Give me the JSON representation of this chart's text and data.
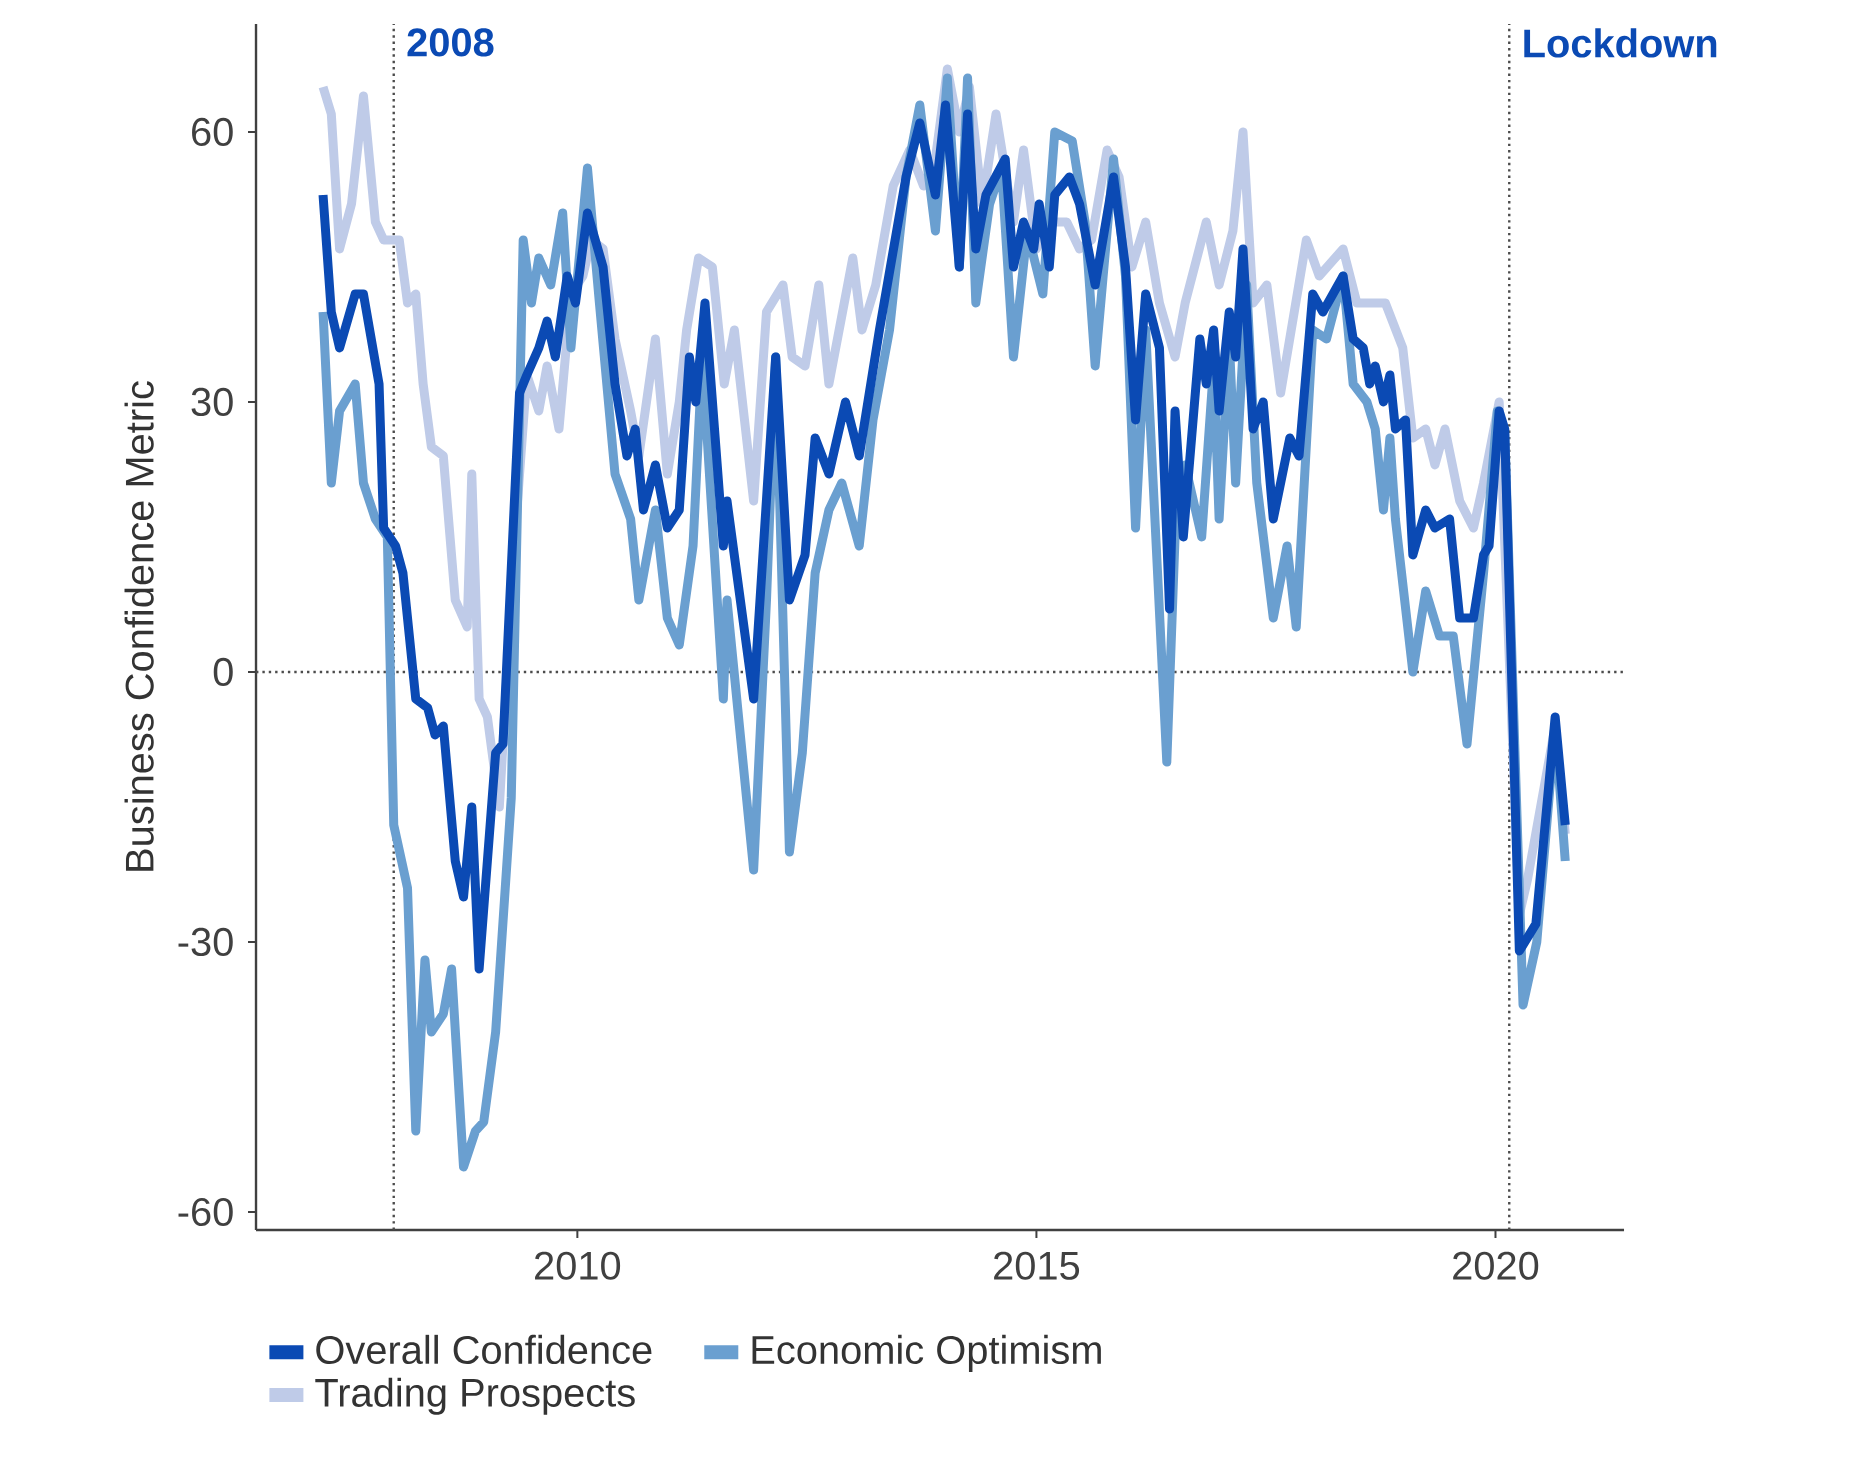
{
  "chart_data": {
    "type": "line",
    "ylabel": "Business Confidence Metric",
    "xlim": [
      2006.5,
      2021.4
    ],
    "ylim": [
      -62,
      72
    ],
    "xticks": [
      2010,
      2015,
      2020
    ],
    "yticks": [
      -60,
      -30,
      0,
      30,
      60
    ],
    "grid": false,
    "legend": "bottom",
    "line_style": "solid",
    "marker": "none",
    "ref_lines": [
      {
        "axis": "x",
        "value": 2008,
        "label": "2008",
        "line_style": "dotted"
      },
      {
        "axis": "x",
        "value": 2020.15,
        "label": "Lockdown",
        "line_style": "dotted"
      },
      {
        "axis": "y",
        "value": 0,
        "line_style": "dotted"
      }
    ],
    "series": [
      {
        "name": "Overall Confidence",
        "color": "#0b4ab4",
        "x": [
          2007.23,
          2007.32,
          2007.41,
          2007.58,
          2007.67,
          2007.84,
          2007.89,
          2008.02,
          2008.1,
          2008.24,
          2008.37,
          2008.45,
          2008.54,
          2008.67,
          2008.76,
          2008.85,
          2008.93,
          2009.11,
          2009.19,
          2009.37,
          2009.45,
          2009.58,
          2009.67,
          2009.76,
          2009.89,
          2009.98,
          2010.11,
          2010.28,
          2010.41,
          2010.54,
          2010.63,
          2010.72,
          2010.85,
          2010.98,
          2011.11,
          2011.22,
          2011.29,
          2011.39,
          2011.59,
          2011.63,
          2011.92,
          2012.16,
          2012.31,
          2012.48,
          2012.59,
          2012.74,
          2012.92,
          2013.07,
          2013.29,
          2013.58,
          2013.73,
          2013.9,
          2014.01,
          2014.16,
          2014.25,
          2014.34,
          2014.45,
          2014.66,
          2014.75,
          2014.86,
          2014.97,
          2015.03,
          2015.14,
          2015.2,
          2015.36,
          2015.47,
          2015.64,
          2015.84,
          2015.97,
          2016.08,
          2016.19,
          2016.34,
          2016.45,
          2016.51,
          2016.6,
          2016.78,
          2016.85,
          2016.93,
          2016.99,
          2017.1,
          2017.17,
          2017.25,
          2017.36,
          2017.47,
          2017.58,
          2017.76,
          2017.86,
          2018.01,
          2018.12,
          2018.34,
          2018.45,
          2018.56,
          2018.63,
          2018.69,
          2018.78,
          2018.85,
          2018.91,
          2019.02,
          2019.1,
          2019.24,
          2019.34,
          2019.5,
          2019.61,
          2019.76,
          2019.87,
          2019.93,
          2020.04,
          2020.1,
          2020.26,
          2020.44,
          2020.65,
          2020.76
        ],
        "values": [
          53,
          40,
          36,
          42,
          42,
          32,
          16,
          14,
          11,
          -3,
          -4,
          -7,
          -6,
          -21,
          -25,
          -15,
          -33,
          -9,
          -8,
          31,
          33,
          36,
          39,
          35,
          44,
          41,
          51,
          45,
          32,
          24,
          27,
          18,
          23,
          16,
          18,
          35,
          30,
          41,
          14,
          19,
          -3,
          35,
          8,
          13,
          26,
          22,
          30,
          24,
          38,
          55,
          61,
          53,
          63,
          45,
          62,
          47,
          53,
          57,
          45,
          50,
          47,
          52,
          45,
          53,
          55,
          52,
          43,
          55,
          45,
          28,
          42,
          36,
          7,
          29,
          15,
          37,
          32,
          38,
          29,
          40,
          35,
          47,
          27,
          30,
          17,
          26,
          24,
          42,
          40,
          44,
          37,
          36,
          32,
          34,
          30,
          33,
          27,
          28,
          13,
          18,
          16,
          17,
          6,
          6,
          13,
          14,
          29,
          27,
          -31,
          -28,
          -5,
          -17
        ]
      },
      {
        "name": "Economic Optimism",
        "color": "#6a9fd0",
        "x": [
          2007.23,
          2007.32,
          2007.41,
          2007.58,
          2007.67,
          2007.8,
          2007.93,
          2008.0,
          2008.15,
          2008.24,
          2008.34,
          2008.41,
          2008.54,
          2008.63,
          2008.76,
          2008.89,
          2008.98,
          2009.11,
          2009.28,
          2009.41,
          2009.5,
          2009.58,
          2009.71,
          2009.84,
          2009.93,
          2010.11,
          2010.24,
          2010.41,
          2010.58,
          2010.67,
          2010.85,
          2010.98,
          2011.11,
          2011.26,
          2011.36,
          2011.59,
          2011.63,
          2011.92,
          2012.06,
          2012.16,
          2012.31,
          2012.45,
          2012.59,
          2012.74,
          2012.88,
          2013.07,
          2013.22,
          2013.4,
          2013.58,
          2013.73,
          2013.9,
          2014.03,
          2014.16,
          2014.25,
          2014.34,
          2014.49,
          2014.62,
          2014.75,
          2014.9,
          2015.07,
          2015.2,
          2015.39,
          2015.53,
          2015.64,
          2015.84,
          2015.97,
          2016.08,
          2016.19,
          2016.42,
          2016.51,
          2016.62,
          2016.8,
          2016.93,
          2016.99,
          2017.1,
          2017.17,
          2017.29,
          2017.4,
          2017.58,
          2017.73,
          2017.83,
          2018.01,
          2018.16,
          2018.34,
          2018.45,
          2018.6,
          2018.69,
          2018.78,
          2018.85,
          2018.91,
          2019.1,
          2019.24,
          2019.39,
          2019.54,
          2019.69,
          2019.87,
          2020.02,
          2020.1,
          2020.3,
          2020.45,
          2020.65,
          2020.76
        ],
        "values": [
          40,
          21,
          29,
          32,
          21,
          17,
          15,
          -17,
          -24,
          -51,
          -32,
          -40,
          -38,
          -33,
          -55,
          -51,
          -50,
          -40,
          -14,
          48,
          41,
          46,
          43,
          51,
          36,
          56,
          41,
          22,
          17,
          8,
          18,
          6,
          3,
          14,
          35,
          -3,
          8,
          -22,
          8,
          35,
          -20,
          -9,
          11,
          18,
          21,
          14,
          28,
          38,
          55,
          63,
          49,
          66,
          45,
          66,
          41,
          52,
          56,
          35,
          49,
          42,
          60,
          59,
          50,
          34,
          57,
          44,
          16,
          38,
          -10,
          15,
          23,
          15,
          34,
          17,
          37,
          21,
          43,
          21,
          6,
          14,
          5,
          38,
          37,
          44,
          32,
          30,
          27,
          18,
          26,
          17,
          0,
          9,
          4,
          4,
          -8,
          11,
          29,
          27,
          -37,
          -30,
          -6,
          -21
        ]
      },
      {
        "name": "Trading Prospects",
        "color": "#bfcbe8",
        "x": [
          2007.23,
          2007.32,
          2007.41,
          2007.54,
          2007.67,
          2007.8,
          2007.89,
          2008.06,
          2008.15,
          2008.24,
          2008.32,
          2008.41,
          2008.54,
          2008.67,
          2008.8,
          2008.85,
          2008.93,
          2009.02,
          2009.15,
          2009.32,
          2009.45,
          2009.58,
          2009.67,
          2009.8,
          2009.93,
          2010.06,
          2010.15,
          2010.28,
          2010.41,
          2010.58,
          2010.67,
          2010.85,
          2010.98,
          2011.11,
          2011.19,
          2011.32,
          2011.47,
          2011.6,
          2011.71,
          2011.92,
          2012.06,
          2012.24,
          2012.34,
          2012.48,
          2012.63,
          2012.74,
          2013.0,
          2013.1,
          2013.25,
          2013.44,
          2013.62,
          2013.77,
          2013.9,
          2014.03,
          2014.16,
          2014.27,
          2014.41,
          2014.56,
          2014.75,
          2014.86,
          2015.0,
          2015.14,
          2015.33,
          2015.47,
          2015.6,
          2015.77,
          2015.9,
          2016.04,
          2016.19,
          2016.34,
          2016.51,
          2016.62,
          2016.85,
          2016.99,
          2017.14,
          2017.25,
          2017.36,
          2017.51,
          2017.66,
          2017.94,
          2018.08,
          2018.34,
          2018.49,
          2018.67,
          2018.8,
          2018.99,
          2019.1,
          2019.24,
          2019.34,
          2019.45,
          2019.61,
          2019.76,
          2019.87,
          2020.04,
          2020.26,
          2020.35,
          2020.65,
          2020.76
        ],
        "values": [
          65,
          62,
          47,
          52,
          64,
          50,
          48,
          48,
          41,
          42,
          32,
          25,
          24,
          8,
          5,
          22,
          -3,
          -5,
          -15,
          15,
          33,
          29,
          34,
          27,
          42,
          44,
          48,
          47,
          37,
          29,
          24,
          37,
          22,
          30,
          38,
          46,
          45,
          32,
          38,
          19,
          40,
          43,
          35,
          34,
          43,
          32,
          46,
          38,
          43,
          54,
          58,
          54,
          57,
          67,
          60,
          65,
          52,
          62,
          50,
          58,
          47,
          50,
          50,
          47,
          48,
          58,
          55,
          45,
          50,
          41,
          35,
          41,
          50,
          43,
          49,
          60,
          41,
          43,
          31,
          48,
          44,
          47,
          41,
          41,
          41,
          36,
          26,
          27,
          23,
          27,
          19,
          16,
          21,
          30,
          -27,
          -23,
          -6,
          -18
        ]
      }
    ]
  }
}
